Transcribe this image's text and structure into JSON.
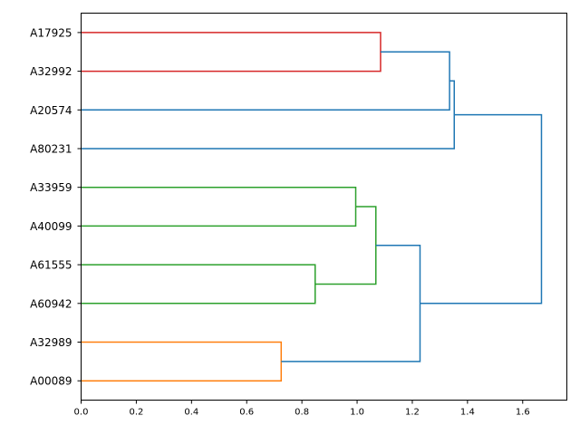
{
  "chart_data": {
    "type": "dendrogram",
    "orientation": "left",
    "xlim": [
      0,
      1.76
    ],
    "x_ticks": [
      "0.0",
      "0.2",
      "0.4",
      "0.6",
      "0.8",
      "1.0",
      "1.2",
      "1.4",
      "1.6"
    ],
    "leaves": [
      "A17925",
      "A32992",
      "A20574",
      "A80231",
      "A33959",
      "A40099",
      "A61555",
      "A60942",
      "A32989",
      "A00089"
    ],
    "colors": {
      "red": "#d62728",
      "blue": "#1f77b4",
      "green": "#2ca02c",
      "orange": "#ff7f0e"
    },
    "merges": [
      {
        "a": "A17925",
        "b": "A32992",
        "height": 1.085,
        "color": "red"
      },
      {
        "a": "A17925+A32992",
        "b": "A20574",
        "height": 1.335,
        "color": "blue"
      },
      {
        "a": "A17925+A32992+A20574",
        "b": "A80231",
        "height": 1.352,
        "color": "blue"
      },
      {
        "a": "A33959",
        "b": "A40099",
        "height": 0.995,
        "color": "green"
      },
      {
        "a": "A61555",
        "b": "A60942",
        "height": 0.848,
        "color": "green"
      },
      {
        "a": "A33959+A40099",
        "b": "A61555+A60942",
        "height": 1.068,
        "color": "green"
      },
      {
        "a": "A32989",
        "b": "A00089",
        "height": 0.725,
        "color": "orange"
      },
      {
        "a": "green-cluster",
        "b": "orange-cluster",
        "height": 1.228,
        "color": "blue"
      },
      {
        "a": "top-cluster",
        "b": "bottom-cluster",
        "height": 1.668,
        "color": "blue"
      }
    ]
  }
}
